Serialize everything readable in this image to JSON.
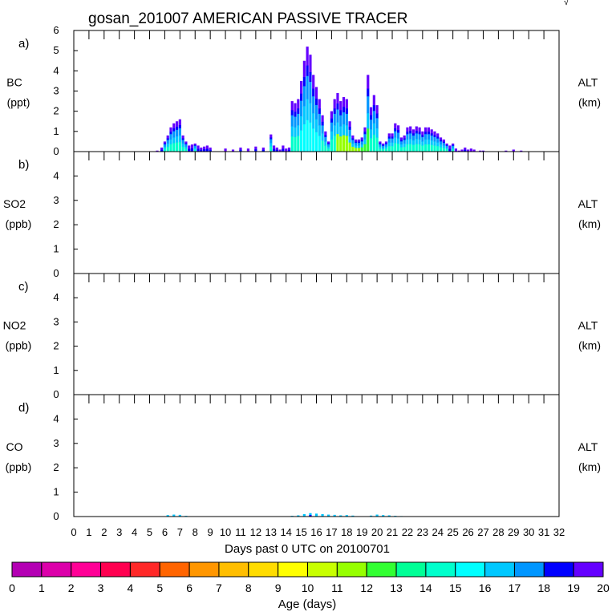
{
  "title": "gosan_201007 AMERICAN PASSIVE TRACER",
  "corner_mark": "√",
  "colorbar": {
    "label": "Age (days)",
    "ticks": [
      "0",
      "1",
      "2",
      "3",
      "4",
      "5",
      "6",
      "7",
      "8",
      "9",
      "10",
      "11",
      "12",
      "13",
      "14",
      "15",
      "16",
      "17",
      "18",
      "19",
      "20"
    ],
    "colors": [
      "#800080",
      "#b400b4",
      "#dc00aa",
      "#ff0096",
      "#ff0050",
      "#ff2828",
      "#ff6400",
      "#ff9600",
      "#ffbe00",
      "#ffdc00",
      "#ffff00",
      "#c8ff00",
      "#96ff00",
      "#32ff32",
      "#00ff96",
      "#00ffcc",
      "#00ffff",
      "#00c8ff",
      "#0096ff",
      "#0000ff",
      "#6400ff"
    ]
  },
  "chart_data": [
    {
      "type": "area",
      "panel": "a)",
      "ylabel": [
        "BC",
        "(ppt)"
      ],
      "right_label": [
        "ALT",
        "(km)"
      ],
      "ylim": [
        0,
        6
      ],
      "yticks": [
        "0",
        "1",
        "2",
        "3",
        "4",
        "5",
        "6"
      ],
      "xlim": [
        0,
        32
      ],
      "bottom_age_colors": {
        "default": "#00ffcc",
        "segments": [
          {
            "from": 17.4,
            "to": 19.0,
            "color": "#96ff00"
          },
          {
            "from": 19.0,
            "to": 19.6,
            "color": "#32ff32"
          },
          {
            "from": 15.0,
            "to": 16.4,
            "color": "#00ffff"
          }
        ]
      },
      "x": [
        5.5,
        5.8,
        6.0,
        6.2,
        6.4,
        6.6,
        6.8,
        7.0,
        7.2,
        7.4,
        7.6,
        7.8,
        8.0,
        8.2,
        8.4,
        8.6,
        8.8,
        9.0,
        9.5,
        10.0,
        10.5,
        11.0,
        11.5,
        12.0,
        12.5,
        13.0,
        13.2,
        13.4,
        13.6,
        13.8,
        14.0,
        14.2,
        14.4,
        14.6,
        14.8,
        15.0,
        15.2,
        15.4,
        15.6,
        15.8,
        16.0,
        16.2,
        16.4,
        16.6,
        16.8,
        17.0,
        17.2,
        17.4,
        17.6,
        17.8,
        18.0,
        18.2,
        18.4,
        18.6,
        18.8,
        19.0,
        19.2,
        19.4,
        19.6,
        19.8,
        20.0,
        20.2,
        20.4,
        20.6,
        20.8,
        21.0,
        21.2,
        21.4,
        21.6,
        21.8,
        22.0,
        22.2,
        22.4,
        22.6,
        22.8,
        23.0,
        23.2,
        23.4,
        23.6,
        23.8,
        24.0,
        24.2,
        24.4,
        24.6,
        24.8,
        25.0,
        25.2,
        25.4,
        25.6,
        25.8,
        26.0,
        26.2,
        26.4,
        26.6,
        26.8,
        27.0,
        27.5,
        28.0,
        28.5,
        29.0,
        29.5,
        30.0
      ],
      "values": [
        0.05,
        0.2,
        0.5,
        0.8,
        1.2,
        1.4,
        1.5,
        1.6,
        0.8,
        0.5,
        0.3,
        0.35,
        0.4,
        0.3,
        0.2,
        0.25,
        0.3,
        0.2,
        0.0,
        0.15,
        0.1,
        0.2,
        0.15,
        0.25,
        0.2,
        0.85,
        0.3,
        0.2,
        0.1,
        0.3,
        0.15,
        0.2,
        2.5,
        2.4,
        2.6,
        3.5,
        4.5,
        5.2,
        4.8,
        3.8,
        3.2,
        2.6,
        1.8,
        1.0,
        0.5,
        2.0,
        2.6,
        2.9,
        2.5,
        2.7,
        2.6,
        1.5,
        0.8,
        0.6,
        0.6,
        0.7,
        1.2,
        3.8,
        2.2,
        2.8,
        2.3,
        0.5,
        0.4,
        0.5,
        0.9,
        0.9,
        1.4,
        1.3,
        0.7,
        0.8,
        1.2,
        1.25,
        1.1,
        1.25,
        1.2,
        1.0,
        1.2,
        1.2,
        1.1,
        1.0,
        0.9,
        0.7,
        0.6,
        0.4,
        0.3,
        0.4,
        0.15,
        0.05,
        0.1,
        0.2,
        0.1,
        0.15,
        0.1,
        0.0,
        0.05,
        0.05,
        0.0,
        0.0,
        0.05,
        0.1,
        0.05,
        0.0
      ]
    },
    {
      "type": "area",
      "panel": "b)",
      "ylabel": [
        "SO2",
        "(ppb)"
      ],
      "right_label": [
        "ALT",
        "(km)"
      ],
      "ylim": [
        0,
        5
      ],
      "yticks": [
        "0",
        "1",
        "2",
        "3",
        "4"
      ],
      "xlim": [
        0,
        32
      ],
      "x": [],
      "values": []
    },
    {
      "type": "area",
      "panel": "c)",
      "ylabel": [
        "NO2",
        "(ppb)"
      ],
      "right_label": [
        "ALT",
        "(km)"
      ],
      "ylim": [
        0,
        5
      ],
      "yticks": [
        "0",
        "1",
        "2",
        "3",
        "4"
      ],
      "xlim": [
        0,
        32
      ],
      "x": [],
      "values": []
    },
    {
      "type": "area",
      "panel": "d)",
      "ylabel": [
        "CO",
        "(ppb)"
      ],
      "right_label": [
        "ALT",
        "(km)"
      ],
      "ylim": [
        0,
        5
      ],
      "yticks": [
        "0",
        "1",
        "2",
        "3",
        "4"
      ],
      "xlim": [
        0,
        32
      ],
      "x": [
        6.2,
        6.6,
        7.0,
        7.4,
        14.4,
        14.8,
        15.2,
        15.6,
        16.0,
        16.4,
        16.8,
        17.2,
        17.6,
        18.0,
        18.4,
        19.6,
        20.0,
        20.4,
        20.8,
        21.2,
        21.6
      ],
      "values": [
        0.06,
        0.08,
        0.07,
        0.03,
        0.03,
        0.05,
        0.1,
        0.14,
        0.12,
        0.1,
        0.08,
        0.07,
        0.05,
        0.06,
        0.04,
        0.04,
        0.08,
        0.06,
        0.05,
        0.03,
        0.02
      ]
    }
  ],
  "xaxis": {
    "label": "Days past 0 UTC on 20100701",
    "ticks": [
      "0",
      "1",
      "2",
      "3",
      "4",
      "5",
      "6",
      "7",
      "8",
      "9",
      "10",
      "11",
      "12",
      "13",
      "14",
      "15",
      "16",
      "17",
      "18",
      "19",
      "20",
      "21",
      "22",
      "23",
      "24",
      "25",
      "26",
      "27",
      "28",
      "29",
      "30",
      "31",
      "32"
    ]
  }
}
